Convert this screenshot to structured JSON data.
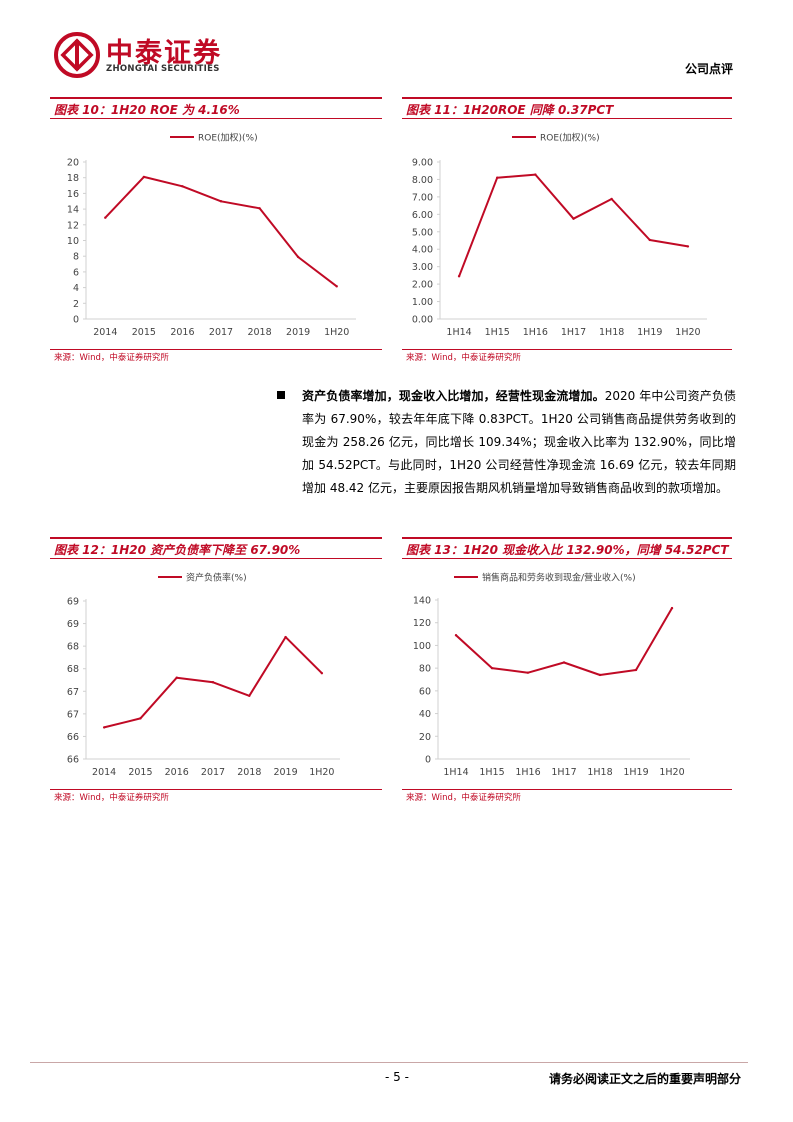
{
  "header": {
    "company_cn": "中泰证券",
    "company_en": "ZHONGTAI SECURITIES",
    "doc_type": "公司点评"
  },
  "figures": [
    {
      "title": "图表 10：1H20 ROE 为 4.16%",
      "source": "来源：Wind，中泰证券研究所",
      "chart_data": {
        "type": "line",
        "categories": [
          "2014",
          "2015",
          "2016",
          "2017",
          "2018",
          "2019",
          "1H20"
        ],
        "series": [
          {
            "name": "ROE(加权)(%)",
            "values": [
              12.9,
              18.1,
              16.9,
              15.0,
              14.1,
              7.9,
              4.16
            ]
          }
        ],
        "yticks": [
          "0",
          "2",
          "4",
          "6",
          "8",
          "10",
          "12",
          "14",
          "16",
          "18",
          "20"
        ],
        "ylim": [
          0,
          20
        ],
        "color": "#c00a25",
        "legend": "top-center",
        "grid": false
      }
    },
    {
      "title": "图表 11：1H20ROE 同降 0.37PCT",
      "source": "来源：Wind，中泰证券研究所",
      "chart_data": {
        "type": "line",
        "categories": [
          "1H14",
          "1H15",
          "1H16",
          "1H17",
          "1H18",
          "1H19",
          "1H20"
        ],
        "series": [
          {
            "name": "ROE(加权)(%)",
            "values": [
              2.45,
              8.1,
              8.28,
              5.75,
              6.88,
              4.53,
              4.16
            ]
          }
        ],
        "yticks": [
          "0.00",
          "1.00",
          "2.00",
          "3.00",
          "4.00",
          "5.00",
          "6.00",
          "7.00",
          "8.00",
          "9.00"
        ],
        "ylim": [
          0,
          9
        ],
        "color": "#c00a25",
        "legend": "top-center",
        "grid": false
      }
    },
    {
      "title": "图表 12：1H20 资产负债率下降至 67.90%",
      "source": "来源：Wind，中泰证券研究所",
      "chart_data": {
        "type": "line",
        "categories": [
          "2014",
          "2015",
          "2016",
          "2017",
          "2018",
          "2019",
          "1H20"
        ],
        "series": [
          {
            "name": "资产负债率(%)",
            "values": [
              66.7,
              66.9,
              67.8,
              67.7,
              67.4,
              68.7,
              67.9
            ]
          }
        ],
        "yticks": [
          "66",
          "66",
          "67",
          "67",
          "68",
          "68",
          "69",
          "69"
        ],
        "ylim": [
          66,
          69.5
        ],
        "color": "#c00a25",
        "legend": "top-left",
        "grid": false
      }
    },
    {
      "title": "图表 13：1H20 现金收入比 132.90%，同增 54.52PCT",
      "source": "来源：Wind，中泰证券研究所",
      "chart_data": {
        "type": "line",
        "categories": [
          "1H14",
          "1H15",
          "1H16",
          "1H17",
          "1H18",
          "1H19",
          "1H20"
        ],
        "series": [
          {
            "name": "销售商品和劳务收到现金/营业收入(%)",
            "values": [
              109,
              80,
              76,
              85,
              74,
              78.4,
              132.9
            ]
          }
        ],
        "yticks": [
          "0",
          "20",
          "40",
          "60",
          "80",
          "100",
          "120",
          "140"
        ],
        "ylim": [
          0,
          140
        ],
        "color": "#c00a25",
        "legend": "top-center",
        "grid": false
      }
    }
  ],
  "paragraph": {
    "lead": "资产负债率增加，现金收入比增加，经营性现金流增加。",
    "text": "2020 年中公司资产负债率为 67.90%，较去年年底下降 0.83PCT。1H20 公司销售商品提供劳务收到的现金为 258.26 亿元，同比增长 109.34%；现金收入比率为 132.90%，同比增加 54.52PCT。与此同时，1H20 公司经营性净现金流 16.69 亿元，较去年同期增加 48.42 亿元，主要原因报告期风机销量增加导致销售商品收到的款项增加。"
  },
  "footer": {
    "page": "- 5 -",
    "disclaimer": "请务必阅读正文之后的重要声明部分"
  }
}
